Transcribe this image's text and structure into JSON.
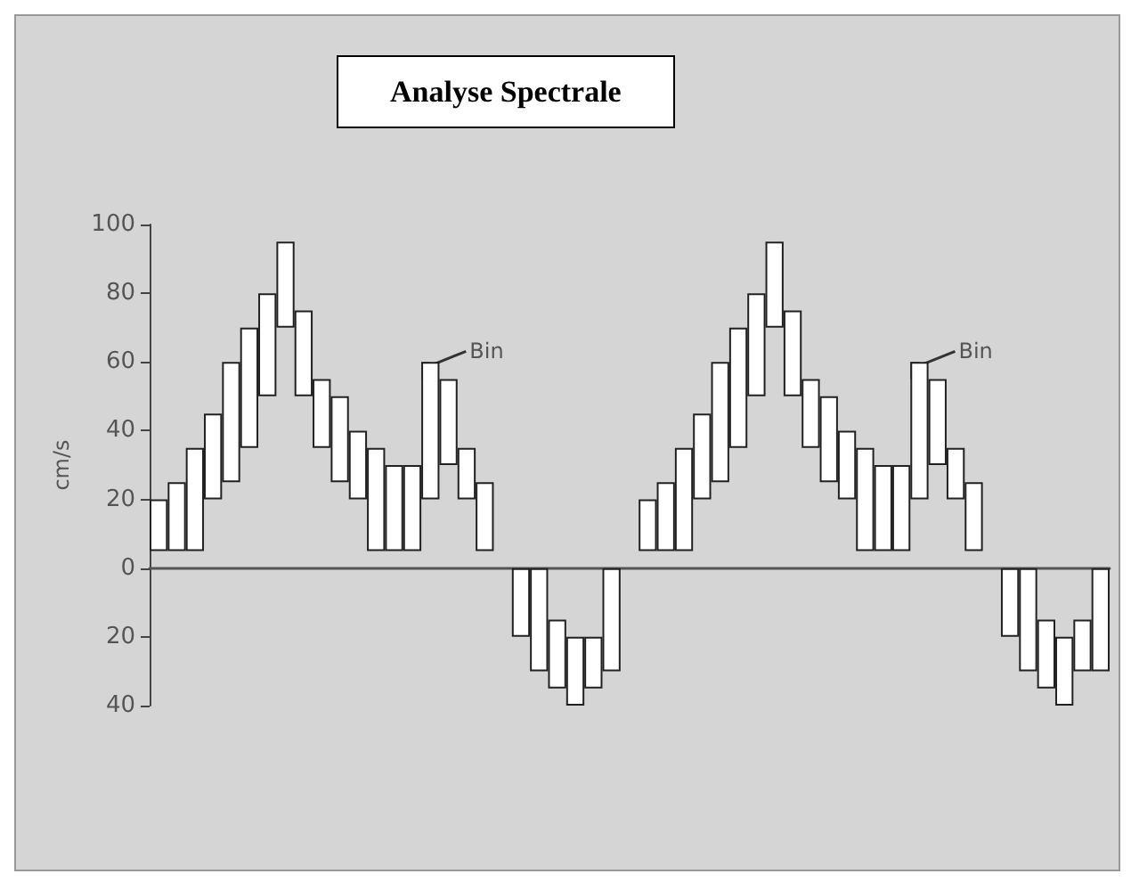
{
  "chart_data": {
    "type": "bar",
    "title": "Analyse Spectrale",
    "ylabel": "cm/s",
    "categories": [
      null,
      null,
      null,
      null,
      null,
      null,
      null,
      null,
      null,
      null,
      null,
      null,
      null,
      null,
      null,
      null,
      null,
      null,
      null,
      null,
      null,
      null,
      null,
      null,
      null,
      null,
      null,
      null,
      null,
      null,
      null,
      null,
      null,
      null,
      null,
      null,
      null,
      null,
      null,
      null,
      null,
      null,
      null,
      null,
      null,
      null,
      null,
      null,
      null,
      null,
      null,
      null,
      null
    ],
    "base": [
      5,
      5,
      5,
      20,
      25,
      35,
      50,
      70,
      50,
      35,
      25,
      20,
      5,
      5,
      5,
      20,
      30,
      20,
      5,
      null,
      0,
      0,
      -15,
      -20,
      -20,
      0,
      null,
      5,
      5,
      5,
      20,
      25,
      35,
      50,
      70,
      50,
      35,
      25,
      20,
      5,
      5,
      5,
      20,
      30,
      20,
      5,
      null,
      0,
      0,
      -15,
      -20,
      -15,
      0
    ],
    "values": [
      15,
      20,
      30,
      25,
      35,
      35,
      30,
      25,
      25,
      20,
      25,
      20,
      30,
      25,
      25,
      40,
      25,
      15,
      20,
      null,
      -20,
      -30,
      -20,
      -20,
      -15,
      -30,
      null,
      15,
      20,
      30,
      25,
      35,
      35,
      30,
      25,
      25,
      20,
      25,
      20,
      30,
      25,
      25,
      40,
      25,
      15,
      20,
      null,
      -20,
      -30,
      -20,
      -20,
      -15,
      -30
    ],
    "color": "#ffffff",
    "annotations": [
      "Bin",
      "Bin"
    ],
    "ylim": [
      -40,
      100
    ],
    "yticks": [
      {
        "value": -40,
        "label": "40"
      },
      {
        "value": -20,
        "label": "20"
      },
      0,
      20,
      40,
      60,
      80,
      100
    ],
    "tick_labels": "y"
  }
}
